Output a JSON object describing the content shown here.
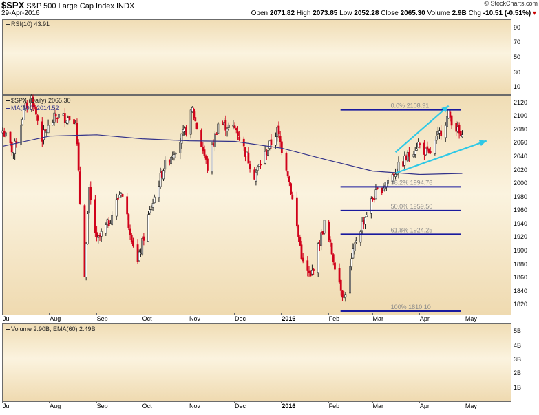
{
  "header": {
    "symbol": "$SPX",
    "name": "S&P 500 Large Cap Index",
    "exchange": "INDX",
    "date": "29-Apr-2016",
    "credit": "© StockCharts.com",
    "quote": {
      "open_label": "Open",
      "open": "2071.82",
      "high_label": "High",
      "high": "2073.85",
      "low_label": "Low",
      "low": "2052.28",
      "close_label": "Close",
      "close": "2065.30",
      "volume_label": "Volume",
      "volume": "2.9B",
      "chg_label": "Chg",
      "chg": "-10.51 (-0.51%)"
    }
  },
  "rsi_panel": {
    "label": "RSI(10) 43.91",
    "ticks": [
      "90",
      "70",
      "50",
      "30",
      "10"
    ]
  },
  "price_panel": {
    "label": "$SPX (Daily) 2065.30",
    "ma_label": "MA(200) 2014.52",
    "ticks": [
      "2120",
      "2100",
      "2080",
      "2060",
      "2040",
      "2020",
      "2000",
      "1980",
      "1960",
      "1940",
      "1920",
      "1900",
      "1880",
      "1860",
      "1840",
      "1820"
    ]
  },
  "volume_panel": {
    "label": "Volume 2.90B, EMA(60) 2.49B",
    "ticks": [
      "5B",
      "4B",
      "3B",
      "2B",
      "1B"
    ]
  },
  "x_axis_labels": [
    "Jul",
    "Aug",
    "Sep",
    "Oct",
    "Nov",
    "Dec",
    "2016",
    "Feb",
    "Mar",
    "Apr",
    "May"
  ],
  "colors": {
    "bull": "#222222",
    "bear": "#d0021b",
    "ma": "#33338a",
    "fib": "#1a1a9e",
    "trend": "#2ec8e6"
  },
  "chart_data": {
    "type": "candlestick",
    "ylim": [
      1805,
      2130
    ],
    "x_axis": {
      "start": "2015-07-01",
      "end": "2016-05-31",
      "labels": [
        {
          "text": "Jul",
          "date": "2015-07-01"
        },
        {
          "text": "Aug",
          "date": "2015-08-01"
        },
        {
          "text": "Sep",
          "date": "2015-09-01"
        },
        {
          "text": "Oct",
          "date": "2015-10-01"
        },
        {
          "text": "Nov",
          "date": "2015-11-01"
        },
        {
          "text": "Dec",
          "date": "2015-12-01"
        },
        {
          "text": "2016",
          "date": "2016-01-01"
        },
        {
          "text": "Feb",
          "date": "2016-02-01"
        },
        {
          "text": "Mar",
          "date": "2016-03-01"
        },
        {
          "text": "Apr",
          "date": "2016-04-01"
        },
        {
          "text": "May",
          "date": "2016-05-01"
        }
      ]
    },
    "close_path": [
      [
        "2015-07-01",
        2078
      ],
      [
        "2015-07-08",
        2046
      ],
      [
        "2015-07-15",
        2108
      ],
      [
        "2015-07-20",
        2128
      ],
      [
        "2015-07-27",
        2068
      ],
      [
        "2015-08-05",
        2100
      ],
      [
        "2015-08-18",
        2096
      ],
      [
        "2015-08-21",
        1971
      ],
      [
        "2015-08-24",
        1868
      ],
      [
        "2015-08-27",
        1988
      ],
      [
        "2015-09-01",
        1913
      ],
      [
        "2015-09-09",
        1942
      ],
      [
        "2015-09-17",
        1990
      ],
      [
        "2015-09-28",
        1881
      ],
      [
        "2015-10-05",
        1950
      ],
      [
        "2015-10-15",
        2023
      ],
      [
        "2015-10-30",
        2079
      ],
      [
        "2015-11-03",
        2109
      ],
      [
        "2015-11-13",
        2023
      ],
      [
        "2015-11-20",
        2089
      ],
      [
        "2015-12-02",
        2080
      ],
      [
        "2015-12-14",
        2012
      ],
      [
        "2015-12-29",
        2078
      ],
      [
        "2016-01-05",
        2016
      ],
      [
        "2016-01-15",
        1880
      ],
      [
        "2016-01-20",
        1859
      ],
      [
        "2016-01-29",
        1940
      ],
      [
        "2016-02-11",
        1829
      ],
      [
        "2016-02-19",
        1917
      ],
      [
        "2016-03-01",
        1978
      ],
      [
        "2016-03-15",
        2015
      ],
      [
        "2016-03-31",
        2059
      ],
      [
        "2016-04-07",
        2041
      ],
      [
        "2016-04-20",
        2102
      ],
      [
        "2016-04-29",
        2065
      ]
    ],
    "ma200": [
      [
        "2015-07-01",
        2055
      ],
      [
        "2015-08-01",
        2070
      ],
      [
        "2015-09-01",
        2072
      ],
      [
        "2015-10-01",
        2066
      ],
      [
        "2015-11-01",
        2063
      ],
      [
        "2015-12-01",
        2062
      ],
      [
        "2016-01-01",
        2052
      ],
      [
        "2016-02-01",
        2034
      ],
      [
        "2016-03-01",
        2018
      ],
      [
        "2016-04-01",
        2013
      ],
      [
        "2016-04-29",
        2014.52
      ]
    ],
    "fibonacci": [
      {
        "level": "0.0%",
        "value": 2108.91,
        "label": "0.0% 2108.91"
      },
      {
        "level": "38.2%",
        "value": 1994.76,
        "label": "38.2% 1994.76"
      },
      {
        "level": "50.0%",
        "value": 1959.5,
        "label": "50.0% 1959.50"
      },
      {
        "level": "61.8%",
        "value": 1924.25,
        "label": "61.8% 1924.25"
      },
      {
        "level": "100%",
        "value": 1810.1,
        "label": "100% 1810.10"
      }
    ],
    "fib_range": [
      "2016-02-11",
      "2016-04-20"
    ],
    "trend_lines": [
      [
        [
          "2016-03-16",
          2046
        ],
        [
          "2016-04-20",
          2115
        ]
      ],
      [
        [
          "2016-03-16",
          2015
        ],
        [
          "2016-05-15",
          2063
        ]
      ]
    ],
    "rsi_ylim": [
      0,
      100
    ],
    "volume_ylim": [
      0,
      5.5
    ]
  }
}
